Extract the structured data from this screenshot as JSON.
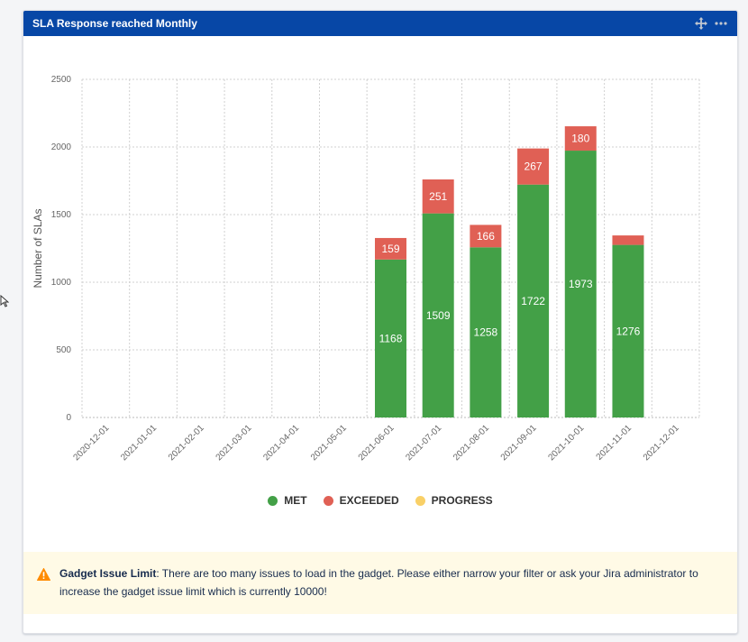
{
  "gadget": {
    "title": "SLA Response reached Monthly",
    "icons": [
      "move-icon",
      "more-icon"
    ]
  },
  "chart_data": {
    "type": "bar",
    "stacked": true,
    "title": "",
    "xlabel": "",
    "ylabel": "Number of SLAs",
    "ylim": [
      0,
      2500
    ],
    "yticks": [
      0,
      500,
      1000,
      1500,
      2000,
      2500
    ],
    "grid": true,
    "legend_position": "bottom",
    "categories": [
      "2020-12-01",
      "2021-01-01",
      "2021-02-01",
      "2021-03-01",
      "2021-04-01",
      "2021-05-01",
      "2021-06-01",
      "2021-07-01",
      "2021-08-01",
      "2021-09-01",
      "2021-10-01",
      "2021-11-01",
      "2021-12-01"
    ],
    "series": [
      {
        "name": "MET",
        "color": "#43a047",
        "values": [
          0,
          0,
          0,
          0,
          0,
          0,
          1168,
          1509,
          1258,
          1722,
          1973,
          1276,
          0
        ],
        "labels": [
          "",
          "",
          "",
          "",
          "",
          "",
          "1168",
          "1509",
          "1258",
          "1722",
          "1973",
          "1276",
          ""
        ]
      },
      {
        "name": "EXCEEDED",
        "color": "#e06055",
        "values": [
          0,
          0,
          0,
          0,
          0,
          0,
          159,
          251,
          166,
          267,
          180,
          70,
          0
        ],
        "labels": [
          "",
          "",
          "",
          "",
          "",
          "",
          "159",
          "251",
          "166",
          "267",
          "180",
          "",
          ""
        ]
      },
      {
        "name": "PROGRESS",
        "color": "#f9d067",
        "values": [
          0,
          0,
          0,
          0,
          0,
          0,
          0,
          0,
          0,
          0,
          0,
          0,
          0
        ],
        "labels": [
          "",
          "",
          "",
          "",
          "",
          "",
          "",
          "",
          "",
          "",
          "",
          "",
          ""
        ]
      }
    ]
  },
  "warning": {
    "title": "Gadget Issue Limit",
    "text": ": There are too many issues to load in the gadget. Please either narrow your filter or ask your Jira administrator to increase the gadget issue limit which is currently 10000!",
    "icon": "warning-icon",
    "color": "#ff8b00"
  }
}
